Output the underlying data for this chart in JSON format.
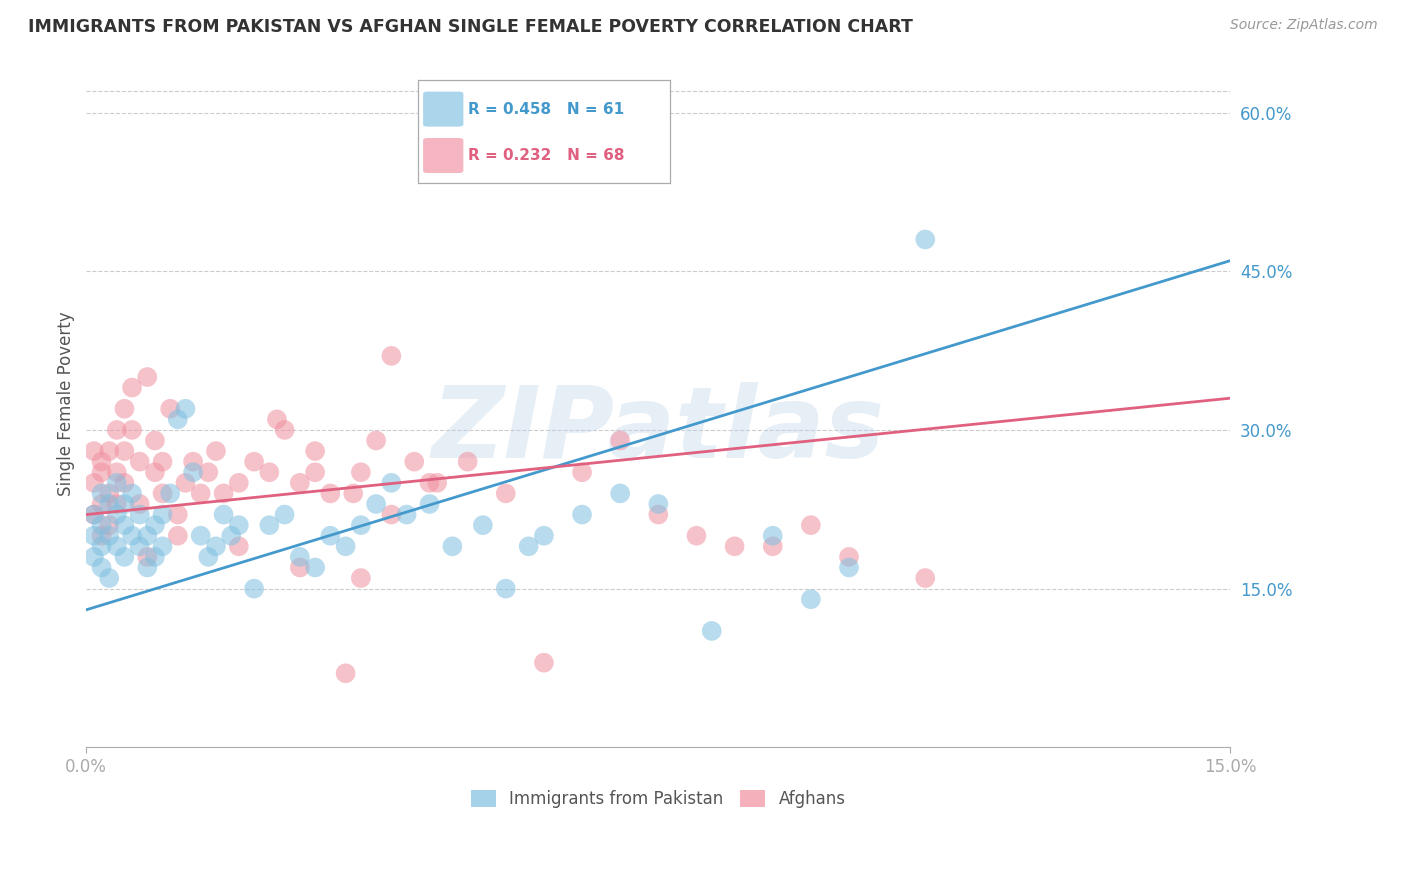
{
  "title": "IMMIGRANTS FROM PAKISTAN VS AFGHAN SINGLE FEMALE POVERTY CORRELATION CHART",
  "source": "Source: ZipAtlas.com",
  "ylabel": "Single Female Poverty",
  "xlim": [
    0.0,
    0.15
  ],
  "ylim": [
    0.0,
    0.65
  ],
  "ytick_labels_right": [
    "15.0%",
    "30.0%",
    "45.0%",
    "60.0%"
  ],
  "ytick_vals_right": [
    0.15,
    0.3,
    0.45,
    0.6
  ],
  "grid_color": "#cccccc",
  "background_color": "#ffffff",
  "watermark": "ZIPatlas",
  "blue_color": "#7fbfdf",
  "pink_color": "#f090a0",
  "blue_line_color": "#4499cc",
  "pink_line_color": "#e06080",
  "legend_label1": "Immigrants from Pakistan",
  "legend_label2": "Afghans",
  "title_fontsize": 13,
  "pakistan_x": [
    0.001,
    0.001,
    0.001,
    0.002,
    0.002,
    0.002,
    0.002,
    0.003,
    0.003,
    0.003,
    0.004,
    0.004,
    0.004,
    0.005,
    0.005,
    0.005,
    0.006,
    0.006,
    0.007,
    0.007,
    0.008,
    0.008,
    0.009,
    0.009,
    0.01,
    0.01,
    0.011,
    0.012,
    0.013,
    0.014,
    0.015,
    0.016,
    0.017,
    0.018,
    0.019,
    0.02,
    0.022,
    0.024,
    0.026,
    0.028,
    0.03,
    0.032,
    0.034,
    0.036,
    0.038,
    0.04,
    0.042,
    0.045,
    0.048,
    0.052,
    0.055,
    0.058,
    0.06,
    0.065,
    0.07,
    0.075,
    0.082,
    0.09,
    0.095,
    0.1,
    0.11
  ],
  "pakistan_y": [
    0.22,
    0.2,
    0.18,
    0.24,
    0.21,
    0.19,
    0.17,
    0.23,
    0.2,
    0.16,
    0.22,
    0.19,
    0.25,
    0.21,
    0.18,
    0.23,
    0.2,
    0.24,
    0.19,
    0.22,
    0.2,
    0.17,
    0.21,
    0.18,
    0.22,
    0.19,
    0.24,
    0.31,
    0.32,
    0.26,
    0.2,
    0.18,
    0.19,
    0.22,
    0.2,
    0.21,
    0.15,
    0.21,
    0.22,
    0.18,
    0.17,
    0.2,
    0.19,
    0.21,
    0.23,
    0.25,
    0.22,
    0.23,
    0.19,
    0.21,
    0.15,
    0.19,
    0.2,
    0.22,
    0.24,
    0.23,
    0.11,
    0.2,
    0.14,
    0.17,
    0.48
  ],
  "afghan_x": [
    0.001,
    0.001,
    0.001,
    0.002,
    0.002,
    0.002,
    0.002,
    0.003,
    0.003,
    0.003,
    0.004,
    0.004,
    0.004,
    0.005,
    0.005,
    0.005,
    0.006,
    0.006,
    0.007,
    0.007,
    0.008,
    0.009,
    0.009,
    0.01,
    0.01,
    0.011,
    0.012,
    0.013,
    0.014,
    0.015,
    0.016,
    0.017,
    0.018,
    0.02,
    0.022,
    0.024,
    0.026,
    0.028,
    0.03,
    0.032,
    0.034,
    0.036,
    0.038,
    0.04,
    0.043,
    0.046,
    0.05,
    0.055,
    0.06,
    0.065,
    0.07,
    0.075,
    0.08,
    0.085,
    0.09,
    0.095,
    0.1,
    0.11,
    0.025,
    0.03,
    0.035,
    0.04,
    0.008,
    0.012,
    0.02,
    0.028,
    0.036,
    0.045
  ],
  "afghan_y": [
    0.25,
    0.22,
    0.28,
    0.26,
    0.23,
    0.27,
    0.2,
    0.28,
    0.24,
    0.21,
    0.3,
    0.26,
    0.23,
    0.32,
    0.28,
    0.25,
    0.34,
    0.3,
    0.27,
    0.23,
    0.35,
    0.26,
    0.29,
    0.24,
    0.27,
    0.32,
    0.22,
    0.25,
    0.27,
    0.24,
    0.26,
    0.28,
    0.24,
    0.25,
    0.27,
    0.26,
    0.3,
    0.25,
    0.28,
    0.24,
    0.07,
    0.26,
    0.29,
    0.37,
    0.27,
    0.25,
    0.27,
    0.24,
    0.08,
    0.26,
    0.29,
    0.22,
    0.2,
    0.19,
    0.19,
    0.21,
    0.18,
    0.16,
    0.31,
    0.26,
    0.24,
    0.22,
    0.18,
    0.2,
    0.19,
    0.17,
    0.16,
    0.25
  ]
}
